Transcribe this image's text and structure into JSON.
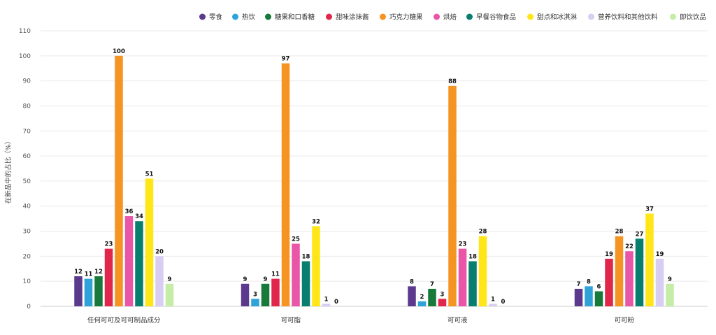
{
  "chart_data": {
    "type": "bar",
    "categories": [
      "任何可可及可可制品成分",
      "可可脂",
      "可可液",
      "可可粉"
    ],
    "ylabel": "在新品中的占比（%）",
    "xlabel": "",
    "ylim": [
      0,
      110
    ],
    "yticks": [
      0,
      10,
      20,
      30,
      40,
      50,
      60,
      70,
      80,
      90,
      100,
      110
    ],
    "grid": true,
    "legend_position": "top-right",
    "series": [
      {
        "name": "零食",
        "color": "#5b3a8e",
        "values": [
          12,
          9,
          8,
          7
        ]
      },
      {
        "name": "热饮",
        "color": "#2fa3d8",
        "values": [
          11,
          3,
          2,
          8
        ]
      },
      {
        "name": "糖果和口香糖",
        "color": "#177a3a",
        "values": [
          12,
          9,
          7,
          6
        ]
      },
      {
        "name": "甜味涂抹酱",
        "color": "#e0274b",
        "values": [
          23,
          11,
          3,
          19
        ]
      },
      {
        "name": "巧克力糖果",
        "color": "#f59423",
        "values": [
          100,
          97,
          88,
          28
        ]
      },
      {
        "name": "烘焙",
        "color": "#e956a8",
        "values": [
          36,
          25,
          23,
          22
        ]
      },
      {
        "name": "早餐谷物食品",
        "color": "#087e6e",
        "values": [
          34,
          18,
          18,
          27
        ]
      },
      {
        "name": "甜点和冰淇淋",
        "color": "#ffe619",
        "values": [
          51,
          32,
          28,
          37
        ]
      },
      {
        "name": "营养饮料和其他饮料",
        "color": "#d8cdf2",
        "values": [
          20,
          1,
          1,
          19
        ]
      },
      {
        "name": "即饮饮品",
        "color": "#c6eda8",
        "values": [
          9,
          0,
          0,
          9
        ]
      }
    ]
  }
}
